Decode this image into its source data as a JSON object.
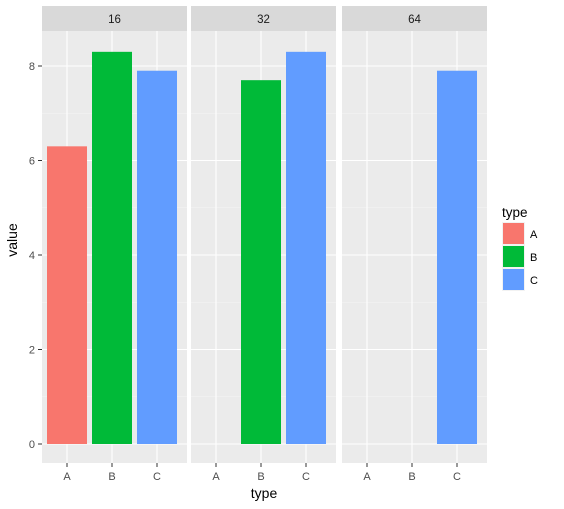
{
  "chart_data": {
    "type": "bar",
    "xlabel": "type",
    "ylabel": "value",
    "ylim": [
      0,
      8.7
    ],
    "y_ticks": [
      0,
      2,
      4,
      6,
      8
    ],
    "categories": [
      "A",
      "B",
      "C"
    ],
    "facets": [
      {
        "label": "16",
        "values": [
          6.3,
          8.3,
          7.9
        ]
      },
      {
        "label": "32",
        "values": [
          null,
          7.7,
          8.3
        ]
      },
      {
        "label": "64",
        "values": [
          null,
          null,
          7.9
        ]
      }
    ],
    "legend": {
      "title": "type",
      "placement": "right",
      "items": [
        {
          "label": "A",
          "color": "#F8766D"
        },
        {
          "label": "B",
          "color": "#00BA38"
        },
        {
          "label": "C",
          "color": "#619CFF"
        }
      ]
    },
    "grid": true
  }
}
